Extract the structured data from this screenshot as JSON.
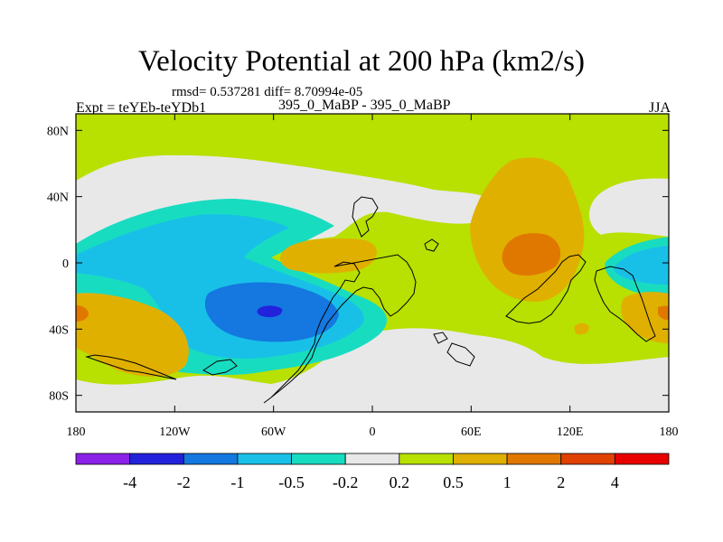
{
  "chart_data": {
    "type": "heatmap",
    "title": "Velocity Potential at 200 hPa (km2/s)",
    "stats_line": "rmsd= 0.537281  diff= 8.70994e-05",
    "left_label": "Expt = teYEb-teYDb1",
    "center_label": "395_0_MaBP - 395_0_MaBP",
    "right_label": "JJA",
    "x_range": [
      -180,
      180
    ],
    "y_range": [
      -90,
      90
    ],
    "x_ticks": [
      {
        "value": -180,
        "label": "180"
      },
      {
        "value": -120,
        "label": "120W"
      },
      {
        "value": -60,
        "label": "60W"
      },
      {
        "value": 0,
        "label": "0"
      },
      {
        "value": 60,
        "label": "60E"
      },
      {
        "value": 120,
        "label": "120E"
      },
      {
        "value": 180,
        "label": "180"
      }
    ],
    "y_ticks": [
      {
        "value": 80,
        "label": "80N"
      },
      {
        "value": 40,
        "label": "40N"
      },
      {
        "value": 0,
        "label": "0"
      },
      {
        "value": -40,
        "label": "40S"
      },
      {
        "value": -80,
        "label": "80S"
      }
    ],
    "contour_levels": [
      -4,
      -2,
      -1,
      -0.5,
      -0.2,
      0.2,
      0.5,
      1,
      2,
      4
    ],
    "colorbar_labels": [
      "-4",
      "-2",
      "-1",
      "-0.5",
      "-0.2",
      "0.2",
      "0.5",
      "1",
      "2",
      "4"
    ],
    "colors": [
      "#8b20e8",
      "#2222dd",
      "#1478e0",
      "#18c0e8",
      "#18dcc0",
      "#e8e8e8",
      "#b8e000",
      "#e0b000",
      "#e07800",
      "#e04000",
      "#e80000"
    ],
    "features": [
      {
        "name": "background",
        "level": "0.2 to 0.5",
        "lon": [
          -180,
          180
        ],
        "lat": [
          -90,
          90
        ]
      },
      {
        "name": "near-zero band northern midlatitudes",
        "level": "-0.2 to 0.2",
        "center": [
          -40,
          45
        ]
      },
      {
        "name": "near-zero band southern ocean",
        "level": "-0.2 to 0.2",
        "center": [
          60,
          -55
        ]
      },
      {
        "name": "negative band eastern Pacific",
        "level": "-0.5 to -0.2",
        "center": [
          -90,
          20
        ]
      },
      {
        "name": "negative band",
        "level": "-1 to -0.5",
        "center": [
          -120,
          5
        ]
      },
      {
        "name": "minimum South America",
        "level": "-2 to -1",
        "center": [
          -65,
          -30
        ]
      },
      {
        "name": "minimum core",
        "level": "< -4",
        "center": [
          -60,
          -28
        ]
      },
      {
        "name": "maximum South Asia",
        "level": "1 to 2",
        "center": [
          100,
          8
        ]
      },
      {
        "name": "positive Atlantic",
        "level": "0.5 to 1",
        "center": [
          -30,
          8
        ]
      },
      {
        "name": "positive western Pacific",
        "level": "0.5 to 1",
        "center": [
          180,
          -28
        ]
      },
      {
        "name": "negative North Pacific",
        "level": "-0.5 to -0.2",
        "center": [
          168,
          5
        ]
      }
    ]
  }
}
